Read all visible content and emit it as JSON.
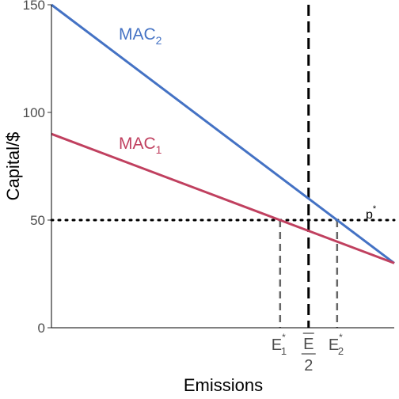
{
  "chart_data": {
    "type": "line",
    "xlabel": "Emissions",
    "ylabel": "Capital/$",
    "ylim": [
      0,
      150
    ],
    "xlim": [
      0,
      1
    ],
    "y_ticks": [
      {
        "value": 0,
        "label": "0"
      },
      {
        "value": 50,
        "label": "50"
      },
      {
        "value": 100,
        "label": "100"
      },
      {
        "value": 150,
        "label": "150"
      }
    ],
    "grid": false,
    "series": [
      {
        "name": "MAC",
        "subscript": "2",
        "color": "#4472C4",
        "x": [
          0,
          1
        ],
        "y": [
          150,
          30
        ]
      },
      {
        "name": "MAC",
        "subscript": "1",
        "color": "#C0405F",
        "x": [
          0,
          1
        ],
        "y": [
          90,
          30
        ]
      }
    ],
    "price_line": {
      "y": 50,
      "label": "p",
      "superscript": "*",
      "style": "dotted",
      "color": "#000000"
    },
    "cap_line": {
      "x": 0.75,
      "label_numerator": "E",
      "label_denominator": "2",
      "style": "dashed",
      "color": "#000000"
    },
    "equilibria": [
      {
        "x": 0.667,
        "y": 50,
        "label": "E",
        "subscript": "1",
        "superscript": "*",
        "style": "dashed",
        "color": "#666666"
      },
      {
        "x": 0.8333,
        "y": 50,
        "label": "E",
        "subscript": "2",
        "superscript": "*",
        "style": "dashed",
        "color": "#666666"
      }
    ]
  }
}
